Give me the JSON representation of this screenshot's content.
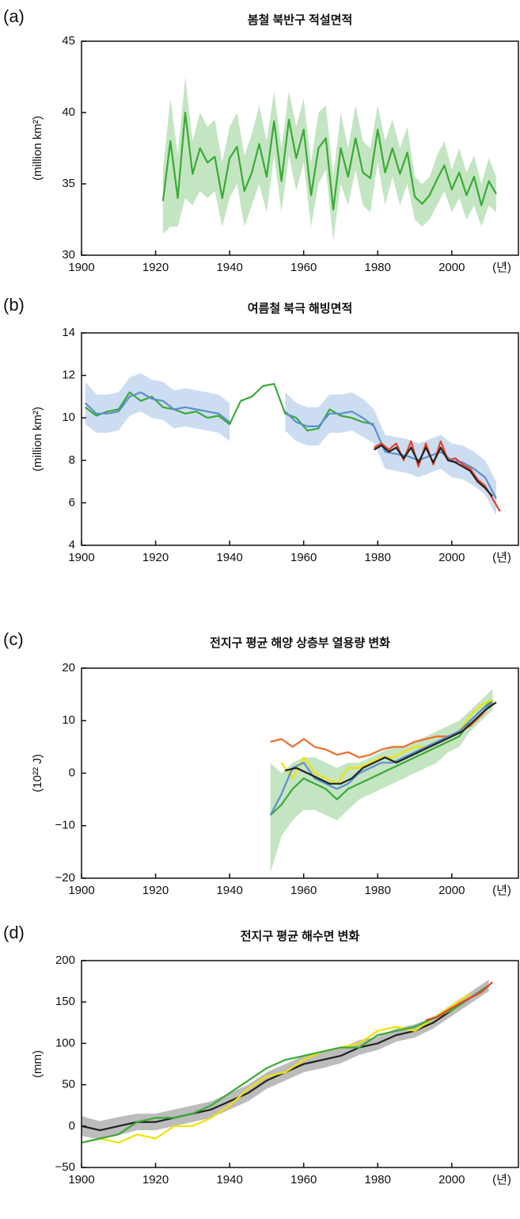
{
  "chart_data": [
    {
      "type": "line",
      "panel_label": "(a)",
      "title": "봄철 북반구 적설면적",
      "ylabel": "(million km²)",
      "xlabel": "(년)",
      "xlim": [
        1900,
        2018
      ],
      "xticks": [
        1900,
        1920,
        1940,
        1960,
        1980,
        2000
      ],
      "ylim": [
        30,
        45
      ],
      "yticks": [
        30,
        35,
        40,
        45
      ],
      "series": [
        {
          "color": "#3aaa35",
          "x": [
            1922,
            1924,
            1926,
            1928,
            1930,
            1932,
            1934,
            1936,
            1938,
            1940,
            1942,
            1944,
            1946,
            1948,
            1950,
            1952,
            1954,
            1956,
            1958,
            1960,
            1962,
            1964,
            1966,
            1968,
            1970,
            1972,
            1974,
            1976,
            1978,
            1980,
            1982,
            1984,
            1986,
            1988,
            1990,
            1992,
            1994,
            1996,
            1998,
            2000,
            2002,
            2004,
            2006,
            2008,
            2010,
            2012
          ],
          "values": [
            33.8,
            38,
            34,
            40,
            35.7,
            37.5,
            36.5,
            36.9,
            34,
            36.8,
            37.6,
            34.5,
            35.8,
            37.8,
            35.5,
            39.4,
            35.2,
            39.5,
            36.8,
            38.8,
            34.2,
            37.5,
            38.2,
            33.2,
            37.5,
            35.5,
            38.2,
            35.8,
            35.4,
            38.8,
            35.8,
            37.5,
            35.7,
            37.2,
            34.1,
            33.6,
            34.2,
            35.3,
            36.3,
            34.6,
            35.8,
            34.2,
            35.5,
            33.5,
            35.2,
            34.3
          ],
          "lower": [
            31.5,
            32,
            32,
            34,
            33.5,
            34.5,
            34,
            34.5,
            32,
            34,
            35,
            32,
            33.5,
            35,
            33,
            37,
            33,
            37,
            34.5,
            36.5,
            32,
            35,
            36,
            31,
            35,
            33.5,
            36,
            33.5,
            33,
            36.5,
            33.5,
            35.5,
            33.5,
            35,
            32.5,
            32,
            32.5,
            33.5,
            34.5,
            33,
            34,
            32.5,
            33.5,
            32,
            33.5,
            33
          ],
          "upper": [
            36,
            41,
            37,
            42.5,
            38,
            40,
            39,
            39.5,
            36.5,
            39,
            40,
            37,
            38.5,
            40.5,
            38,
            41.5,
            37.5,
            41.5,
            39,
            41,
            36.5,
            40,
            40.5,
            35.5,
            40,
            37.5,
            40.5,
            38,
            37.5,
            40.5,
            38,
            39.5,
            37.5,
            39,
            35.5,
            35,
            35.5,
            37,
            38,
            36,
            37.5,
            35.8,
            37,
            35,
            36.8,
            35.5
          ]
        }
      ]
    },
    {
      "type": "line",
      "panel_label": "(b)",
      "title": "여름철 북극 해빙면적",
      "ylabel": "(million km²)",
      "xlabel": "(년)",
      "xlim": [
        1900,
        2018
      ],
      "xticks": [
        1900,
        1920,
        1940,
        1960,
        1980,
        2000
      ],
      "ylim": [
        4,
        14
      ],
      "yticks": [
        4,
        6,
        8,
        10,
        12,
        14
      ],
      "series": [
        {
          "color": "#3aaa35",
          "x": [
            1901,
            1904,
            1907,
            1910,
            1913,
            1916,
            1919,
            1922,
            1925,
            1928,
            1931,
            1934,
            1937,
            1940,
            1943,
            1946,
            1949,
            1952,
            1955,
            1958,
            1961,
            1964,
            1967,
            1970,
            1973,
            1976,
            1979
          ],
          "values": [
            10.5,
            10.1,
            10.3,
            10.4,
            11.2,
            10.8,
            11.0,
            10.5,
            10.4,
            10.2,
            10.3,
            10.0,
            10.1,
            9.7,
            10.8,
            11.0,
            11.5,
            11.6,
            10.2,
            10.0,
            9.4,
            9.5,
            10.4,
            10.1,
            10.0,
            9.8,
            9.7
          ]
        },
        {
          "color": "#5b8fd0",
          "x": [
            1901,
            1904,
            1907,
            1910,
            1913,
            1916,
            1919,
            1922,
            1925,
            1928,
            1931,
            1934,
            1937,
            1940,
            1943,
            1946,
            1949,
            1952,
            1955,
            1958,
            1961,
            1964,
            1967,
            1970,
            1973,
            1976,
            1979,
            1982,
            1985,
            1988,
            1991,
            1994,
            1997,
            2000,
            2003,
            2006,
            2009,
            2012
          ],
          "values": [
            10.7,
            10.2,
            10.2,
            10.3,
            11.0,
            11.2,
            10.9,
            10.8,
            10.4,
            10.5,
            10.4,
            10.3,
            10.2,
            9.8,
            null,
            null,
            null,
            null,
            10.3,
            9.8,
            9.6,
            9.6,
            10.2,
            10.2,
            10.3,
            10.0,
            9.6,
            8.4,
            8.3,
            8.2,
            8.0,
            8.2,
            8.4,
            8.0,
            7.9,
            7.6,
            7.2,
            6.2
          ],
          "lower": [
            9.7,
            9.3,
            9.3,
            9.4,
            10.1,
            10.3,
            10.0,
            9.9,
            9.5,
            9.6,
            9.5,
            9.4,
            9.3,
            8.9,
            null,
            null,
            null,
            null,
            9.4,
            8.9,
            8.7,
            8.7,
            9.3,
            9.3,
            9.4,
            9.1,
            8.8,
            7.6,
            7.5,
            7.4,
            7.2,
            7.4,
            7.6,
            7.2,
            7.1,
            6.8,
            6.4,
            5.4
          ],
          "upper": [
            11.7,
            11.1,
            11.1,
            11.2,
            11.9,
            12.1,
            11.8,
            11.7,
            11.3,
            11.4,
            11.3,
            11.2,
            11.1,
            10.7,
            null,
            null,
            null,
            null,
            11.2,
            10.7,
            10.5,
            10.5,
            11.1,
            11.1,
            11.2,
            10.9,
            10.4,
            9.2,
            9.1,
            9.0,
            8.8,
            9.0,
            9.2,
            8.8,
            8.7,
            8.4,
            8.0,
            7.0
          ]
        },
        {
          "color": "#e8412a",
          "x": [
            1979,
            1981,
            1983,
            1985,
            1987,
            1989,
            1991,
            1993,
            1995,
            1997,
            1999,
            2001,
            2003,
            2005,
            2007,
            2009,
            2011,
            2013
          ],
          "values": [
            8.6,
            8.8,
            8.5,
            8.8,
            8.0,
            8.9,
            7.7,
            8.8,
            7.8,
            8.9,
            8.0,
            8.1,
            7.8,
            7.6,
            7.1,
            6.8,
            6.2,
            5.6
          ]
        },
        {
          "color": "#222222",
          "x": [
            1979,
            1981,
            1983,
            1985,
            1987,
            1989,
            1991,
            1993,
            1995,
            1997,
            1999,
            2001,
            2003,
            2005,
            2007,
            2009,
            2011
          ],
          "values": [
            8.5,
            8.7,
            8.4,
            8.6,
            8.1,
            8.6,
            7.9,
            8.6,
            7.9,
            8.6,
            8.0,
            7.9,
            7.7,
            7.5,
            7.0,
            6.7,
            6.3
          ]
        }
      ]
    },
    {
      "type": "line",
      "panel_label": "(c)",
      "title": "전지구 평균 해양 상층부 열용량 변화",
      "ylabel": "(10²² J)",
      "xlabel": "(년)",
      "xlim": [
        1900,
        2018
      ],
      "xticks": [
        1900,
        1920,
        1940,
        1960,
        1980,
        2000
      ],
      "ylim": [
        -20,
        20
      ],
      "yticks": [
        {
          "value": -20,
          "label": "−20"
        },
        {
          "value": -10,
          "label": "−10"
        },
        0,
        10,
        20
      ],
      "series": [
        {
          "color": "#3aaa35",
          "x": [
            1951,
            1954,
            1957,
            1960,
            1963,
            1966,
            1969,
            1972,
            1975,
            1978,
            1981,
            1984,
            1987,
            1990,
            1993,
            1996,
            1999,
            2002,
            2005,
            2008,
            2011
          ],
          "values": [
            -8,
            -6,
            -3,
            -1,
            -2,
            -3,
            -5,
            -3,
            -2,
            -1,
            0,
            1,
            2,
            3,
            4,
            5,
            6,
            7,
            10,
            12,
            14
          ],
          "lower": [
            -19,
            -12,
            -9,
            -7,
            -7,
            -8,
            -9,
            -7,
            -5,
            -4,
            -3,
            -2,
            -1,
            0,
            1,
            2,
            4,
            5,
            8,
            10,
            12
          ],
          "upper": [
            2,
            0,
            2,
            3,
            3,
            2,
            1,
            2,
            2,
            3,
            4,
            5,
            5,
            6,
            7,
            8,
            9,
            10,
            12,
            14,
            16
          ]
        },
        {
          "color": "#ef6c2e",
          "x": [
            1951,
            1954,
            1957,
            1960,
            1963,
            1966,
            1969,
            1972,
            1975,
            1978,
            1981,
            1984,
            1987,
            1990,
            1993,
            1996,
            1999,
            2002,
            2005,
            2008,
            2011
          ],
          "values": [
            6,
            6.5,
            5,
            6.5,
            5,
            4.5,
            3.5,
            4,
            3,
            3.5,
            4.5,
            5,
            5,
            6,
            6.5,
            7,
            7,
            8,
            9,
            11,
            13.5
          ]
        },
        {
          "color": "#f2e200",
          "x": [
            1954,
            1957,
            1960,
            1963,
            1966,
            1969,
            1972,
            1975,
            1978,
            1981,
            1984,
            1987,
            1990,
            1993,
            1996,
            1999,
            2002,
            2005,
            2008,
            2011
          ],
          "values": [
            2,
            -1,
            3,
            0,
            -1,
            -2,
            1,
            1,
            2,
            3,
            3,
            4,
            5,
            5,
            6,
            7,
            8,
            11,
            13,
            14
          ]
        },
        {
          "color": "#5b8fd0",
          "x": [
            1951,
            1954,
            1957,
            1960,
            1963,
            1966,
            1969,
            1972,
            1975,
            1978,
            1981,
            1984,
            1987,
            1990,
            1993,
            1996,
            1999,
            2002,
            2005,
            2008,
            2011
          ],
          "values": [
            -8,
            -4,
            1,
            2,
            -1,
            -2,
            -3,
            -2,
            0,
            1,
            2,
            2,
            3,
            4,
            5,
            6,
            7,
            8,
            10,
            12,
            13.5
          ]
        },
        {
          "color": "#222222",
          "x": [
            1955,
            1958,
            1961,
            1964,
            1967,
            1970,
            1973,
            1976,
            1979,
            1982,
            1985,
            1988,
            1991,
            1994,
            1997,
            2000,
            2003,
            2006,
            2009,
            2012
          ],
          "values": [
            0.5,
            1,
            0,
            -1,
            -2,
            -2,
            -1,
            1,
            2,
            3,
            2,
            3,
            4,
            5,
            6,
            7,
            8,
            10,
            12,
            13.5
          ]
        }
      ]
    },
    {
      "type": "line",
      "panel_label": "(d)",
      "title": "전지구 평균 해수면 변화",
      "ylabel": "(mm)",
      "xlabel": "(년)",
      "xlim": [
        1900,
        2018
      ],
      "xticks": [
        1900,
        1920,
        1940,
        1960,
        1980,
        2000
      ],
      "ylim": [
        -50,
        200
      ],
      "yticks": [
        {
          "value": -50,
          "label": "−50"
        },
        0,
        50,
        100,
        150,
        200
      ],
      "series": [
        {
          "color": "#222222",
          "x": [
            1900,
            1905,
            1910,
            1915,
            1920,
            1925,
            1930,
            1935,
            1940,
            1945,
            1950,
            1955,
            1960,
            1965,
            1970,
            1975,
            1980,
            1985,
            1990,
            1995,
            2000,
            2005,
            2010
          ],
          "values": [
            0,
            -5,
            0,
            5,
            5,
            10,
            15,
            20,
            30,
            40,
            55,
            65,
            75,
            80,
            85,
            95,
            100,
            110,
            115,
            125,
            140,
            155,
            170
          ],
          "lower": [
            -12,
            -16,
            -11,
            -5,
            -5,
            0,
            5,
            10,
            20,
            30,
            45,
            55,
            65,
            70,
            76,
            86,
            92,
            102,
            107,
            118,
            133,
            148,
            163
          ],
          "upper": [
            12,
            6,
            11,
            15,
            15,
            20,
            25,
            30,
            40,
            50,
            65,
            75,
            85,
            90,
            94,
            104,
            108,
            118,
            123,
            132,
            147,
            162,
            177
          ]
        },
        {
          "color": "#f2e200",
          "x": [
            1900,
            1905,
            1910,
            1915,
            1920,
            1925,
            1930,
            1935,
            1940,
            1945,
            1950,
            1955,
            1960,
            1965,
            1970,
            1975,
            1980,
            1985,
            1990,
            1995,
            2000,
            2005
          ],
          "values": [
            -20,
            -15,
            -20,
            -10,
            -15,
            0,
            0,
            10,
            25,
            45,
            60,
            65,
            80,
            90,
            95,
            100,
            115,
            120,
            115,
            130,
            145,
            160
          ]
        },
        {
          "color": "#3aaa35",
          "x": [
            1900,
            1905,
            1910,
            1915,
            1920,
            1925,
            1930,
            1935,
            1940,
            1945,
            1950,
            1955,
            1960,
            1965,
            1970,
            1975,
            1980,
            1985,
            1990,
            1995,
            2000,
            2005,
            2010
          ],
          "values": [
            -20,
            -15,
            -10,
            5,
            10,
            10,
            15,
            25,
            40,
            55,
            70,
            80,
            85,
            90,
            95,
            95,
            110,
            115,
            120,
            130,
            140,
            155,
            170
          ]
        },
        {
          "color": "#e8412a",
          "x": [
            1993,
            1996,
            1999,
            2002,
            2005,
            2008,
            2011
          ],
          "values": [
            128,
            132,
            140,
            148,
            155,
            162,
            174
          ]
        }
      ]
    }
  ]
}
